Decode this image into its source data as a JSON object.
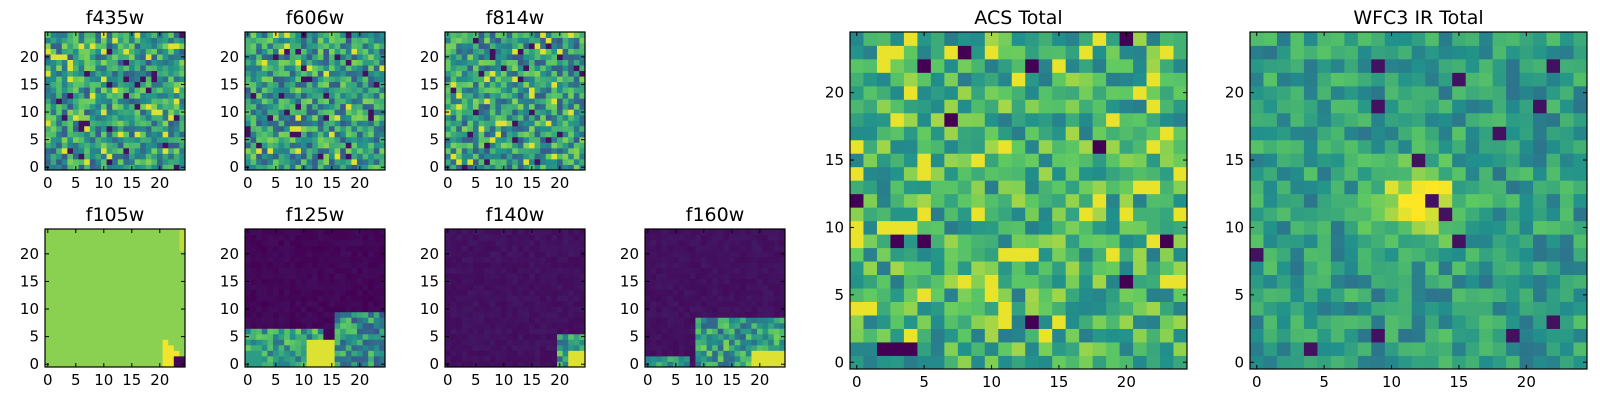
{
  "chart_data": [
    {
      "type": "heatmap",
      "title": "f435w",
      "pattern": "noise",
      "seed": 11,
      "size": 25,
      "xticks": [
        "0",
        "5",
        "10",
        "15",
        "20"
      ],
      "yticks": [
        "0",
        "5",
        "10",
        "15",
        "20"
      ]
    },
    {
      "type": "heatmap",
      "title": "f606w",
      "pattern": "noise",
      "seed": 23,
      "size": 25,
      "xticks": [
        "0",
        "5",
        "10",
        "15",
        "20"
      ],
      "yticks": [
        "0",
        "5",
        "10",
        "15",
        "20"
      ]
    },
    {
      "type": "heatmap",
      "title": "f814w",
      "pattern": "noise",
      "seed": 37,
      "size": 25,
      "xticks": [
        "0",
        "5",
        "10",
        "15",
        "20"
      ],
      "yticks": [
        "0",
        "5",
        "10",
        "15",
        "20"
      ]
    },
    {
      "type": "heatmap",
      "title": "f105w",
      "pattern": "flat-corner",
      "seed": 41,
      "size": 25,
      "xticks": [
        "0",
        "5",
        "10",
        "15",
        "20"
      ],
      "yticks": [
        "0",
        "5",
        "10",
        "15",
        "20"
      ]
    },
    {
      "type": "heatmap",
      "title": "f125w",
      "pattern": "dark-bottom",
      "seed": 53,
      "size": 25,
      "xticks": [
        "0",
        "5",
        "10",
        "15",
        "20"
      ],
      "yticks": [
        "0",
        "5",
        "10",
        "15",
        "20"
      ]
    },
    {
      "type": "heatmap",
      "title": "f140w",
      "pattern": "dark-corner",
      "seed": 67,
      "size": 25,
      "xticks": [
        "0",
        "5",
        "10",
        "15",
        "20"
      ],
      "yticks": [
        "0",
        "5",
        "10",
        "15",
        "20"
      ]
    },
    {
      "type": "heatmap",
      "title": "f160w",
      "pattern": "dark-band",
      "seed": 79,
      "size": 25,
      "xticks": [
        "0",
        "5",
        "10",
        "15",
        "20"
      ],
      "yticks": [
        "0",
        "5",
        "10",
        "15",
        "20"
      ]
    },
    {
      "type": "heatmap",
      "title": "ACS Total",
      "pattern": "noise-smooth",
      "seed": 97,
      "size": 25,
      "xticks": [
        "0",
        "5",
        "10",
        "15",
        "20"
      ],
      "yticks": [
        "0",
        "5",
        "10",
        "15",
        "20"
      ]
    },
    {
      "type": "heatmap",
      "title": "WFC3 IR Total",
      "pattern": "source",
      "seed": 131,
      "size": 25,
      "xticks": [
        "0",
        "5",
        "10",
        "15",
        "20"
      ],
      "yticks": [
        "0",
        "5",
        "10",
        "15",
        "20"
      ]
    }
  ],
  "colormap": [
    "#440154",
    "#3b528b",
    "#21918c",
    "#5ec962",
    "#fde725"
  ]
}
